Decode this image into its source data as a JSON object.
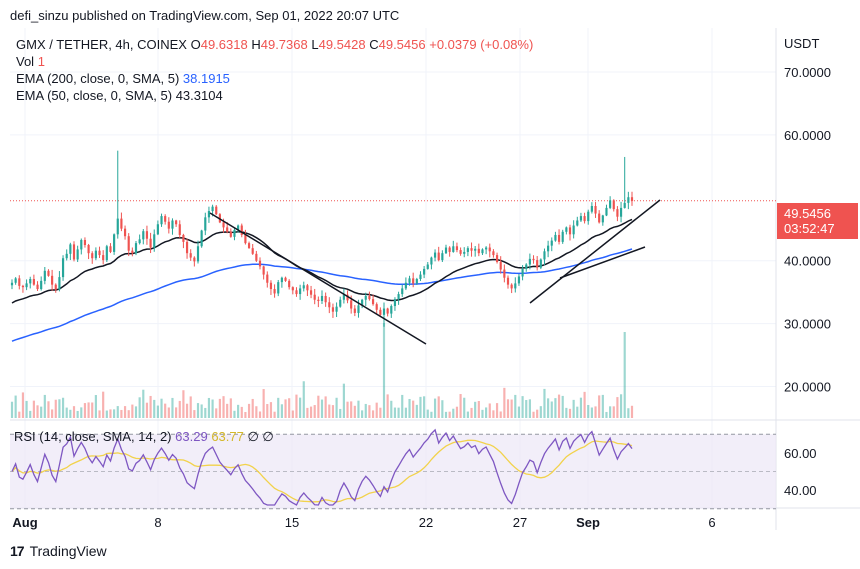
{
  "header": {
    "publisher": "defi_sinzu published on TradingView.com, Sep 01, 2022 20:07 UTC"
  },
  "legend": {
    "symbol": "GMX / TETHER, 4h, COINEX",
    "o_label": "O",
    "o": "49.6318",
    "h_label": "H",
    "h": "49.7368",
    "l_label": "L",
    "l": "49.5428",
    "c_label": "C",
    "c": "49.5456",
    "change": "+0.0379 (+0.08%)",
    "vol_label": "Vol",
    "vol": "1",
    "ema200_label": "EMA (200, close, 0, SMA, 5)",
    "ema200": "38.1915",
    "ema50_label": "EMA (50, close, 0, SMA, 5)",
    "ema50": "43.3104"
  },
  "rsi_legend": {
    "label": "RSI (14, close, SMA, 14, 2)",
    "rsi": "63.29",
    "rsi_ma": "63.77",
    "extra": "∅ ∅"
  },
  "footer": {
    "brand": "TradingView",
    "logo": "17"
  },
  "colors": {
    "up": "#26a69a",
    "down": "#ef5350",
    "ema200": "#2962ff",
    "ema50": "#131722",
    "rsi": "#7e57c2",
    "rsi_ma": "#f2d24b",
    "rsi_band": "#ede7f6"
  },
  "chart_data": [
    {
      "type": "candlestick",
      "pair": "GMX / TETHER",
      "currency": "USDT",
      "y_ticks": [
        "70.0000",
        "60.0000",
        "40.0000",
        "30.0000",
        "20.0000"
      ],
      "ylim": [
        15,
        77
      ],
      "x_ticks": [
        "Aug",
        "8",
        "15",
        "22",
        "27",
        "Sep",
        "6"
      ],
      "last_price": "49.5456",
      "countdown": "03:52:47",
      "close_series": [
        36.5,
        37.2,
        36.0,
        35.8,
        36.4,
        37.1,
        36.2,
        35.5,
        36.8,
        38.4,
        37.6,
        36.2,
        35.4,
        37.4,
        40.4,
        41.1,
        42.6,
        40.2,
        41.8,
        43.3,
        42.5,
        41.2,
        40.4,
        41.6,
        40.9,
        40.1,
        42.3,
        41.4,
        44.2,
        46.7,
        45.1,
        43.9,
        41.6,
        41.2,
        42.8,
        43.4,
        44.7,
        43.5,
        42.1,
        44.2,
        45.8,
        47.1,
        46.2,
        45.1,
        46.4,
        45.8,
        44.1,
        43.0,
        41.2,
        40.5,
        39.9,
        42.3,
        44.8,
        46.9,
        47.9,
        48.6,
        47.4,
        46.1,
        45.3,
        44.6,
        43.8,
        44.9,
        45.6,
        44.1,
        42.8,
        42.0,
        41.1,
        40.0,
        39.1,
        37.8,
        36.5,
        35.5,
        34.8,
        36.6,
        37.3,
        36.8,
        35.8,
        35.3,
        34.7,
        35.6,
        36.1,
        35.3,
        34.6,
        33.8,
        33.6,
        34.4,
        33.4,
        32.6,
        31.9,
        32.7,
        33.8,
        34.6,
        33.7,
        32.4,
        31.7,
        32.9,
        33.8,
        34.4,
        33.9,
        33.1,
        32.2,
        31.4,
        32.4,
        31.6,
        32.8,
        33.9,
        34.7,
        35.6,
        36.5,
        37.2,
        36.4,
        37.1,
        37.8,
        38.7,
        39.4,
        40.5,
        41.3,
        40.1,
        41.2,
        42.1,
        41.4,
        42.3,
        41.7,
        41.1,
        41.4,
        42.0,
        41.6,
        41.9,
        41.2,
        41.8,
        42.1,
        41.5,
        40.9,
        39.8,
        38.6,
        37.3,
        36.2,
        35.6,
        36.4,
        37.5,
        38.7,
        39.4,
        40.3,
        40.1,
        38.9,
        40.2,
        41.5,
        42.4,
        43.2,
        44.1,
        43.0,
        44.6,
        45.3,
        44.2,
        45.6,
        46.4,
        47.1,
        46.3,
        47.8,
        48.7,
        47.5,
        46.1,
        47.2,
        48.4,
        49.6,
        48.2,
        47.0,
        48.4,
        49.2,
        50.1,
        49.5
      ]
    },
    {
      "type": "line",
      "title": "RSI (14, close, SMA, 14, 2)",
      "y_ticks": [
        "60.00",
        "40.00"
      ],
      "ylim": [
        32,
        75
      ],
      "band": [
        30,
        70
      ]
    }
  ]
}
